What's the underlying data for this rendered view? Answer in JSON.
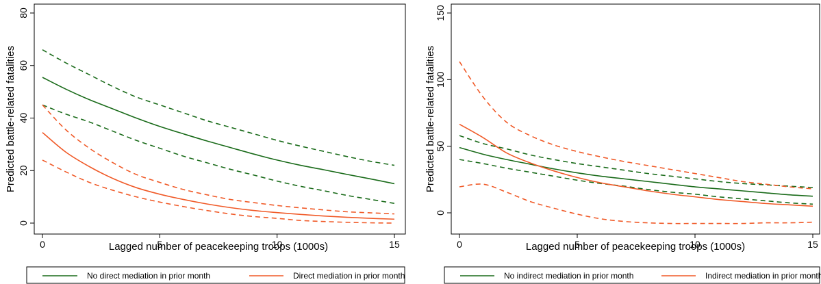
{
  "colors": {
    "no_mediation": "#1a6b1a",
    "mediation": "#f05a28"
  },
  "legend": {
    "left": {
      "no_mediation": "No direct mediation in prior month",
      "mediation": "Direct mediation in prior month"
    },
    "right": {
      "no_mediation": "No indirect mediation in prior month",
      "mediation": "Indirect mediation in prior month"
    }
  },
  "chart_data": [
    {
      "type": "line",
      "xlabel": "Lagged number of peacekeeping troops (1000s)",
      "ylabel": "Predicted battle-related fatalities",
      "xlim": [
        0,
        15
      ],
      "ylim": [
        0,
        80
      ],
      "xticks": [
        0,
        5,
        10,
        15
      ],
      "yticks": [
        0,
        20,
        40,
        60,
        80
      ],
      "x": [
        0,
        1,
        2,
        3,
        4,
        5,
        6,
        7,
        8,
        9,
        10,
        11,
        12,
        13,
        14,
        15
      ],
      "series": [
        {
          "name": "No direct mediation in prior month",
          "group": "no_mediation",
          "style": "solid",
          "values": [
            55.5,
            51,
            47,
            43.5,
            40,
            36.8,
            34,
            31.3,
            28.8,
            26.3,
            24,
            22,
            20.3,
            18.5,
            16.8,
            15
          ]
        },
        {
          "group": "no_mediation",
          "style": "dashed",
          "values": [
            66,
            61,
            56.5,
            52,
            48,
            45,
            42,
            39,
            36.5,
            34,
            31.5,
            29.3,
            27.3,
            25.3,
            23.5,
            22
          ]
        },
        {
          "group": "no_mediation",
          "style": "dashed",
          "values": [
            45,
            41.5,
            38.5,
            35,
            31.5,
            28.5,
            25.5,
            23,
            20.5,
            18.3,
            16,
            14,
            12.3,
            10.5,
            9,
            7.5
          ]
        },
        {
          "name": "Direct mediation in prior month",
          "group": "mediation",
          "style": "solid",
          "values": [
            34.5,
            27,
            21.5,
            17,
            13.5,
            11,
            9,
            7.3,
            5.9,
            4.8,
            4,
            3.3,
            2.7,
            2.2,
            1.8,
            1.5
          ]
        },
        {
          "group": "mediation",
          "style": "dashed",
          "values": [
            45,
            35.5,
            28.5,
            23,
            18.5,
            15.5,
            12.8,
            10.8,
            9,
            7.8,
            6.7,
            5.8,
            5,
            4.3,
            3.9,
            3.5
          ]
        },
        {
          "group": "mediation",
          "style": "dashed",
          "values": [
            24,
            19.5,
            15.5,
            12.5,
            10,
            8,
            6.3,
            4.8,
            3.5,
            2.5,
            1.8,
            1,
            0.6,
            0.3,
            0.1,
            0
          ]
        }
      ]
    },
    {
      "type": "line",
      "xlabel": "Lagged number of peacekeeping troops (1000s)",
      "ylabel": "Predicted battle-related fatalities",
      "xlim": [
        0,
        15
      ],
      "ylim": [
        0,
        150
      ],
      "xticks": [
        0,
        5,
        10,
        15
      ],
      "yticks": [
        0,
        50,
        100,
        150
      ],
      "x": [
        0,
        1,
        2,
        3,
        4,
        5,
        6,
        7,
        8,
        9,
        10,
        11,
        12,
        13,
        14,
        15
      ],
      "series": [
        {
          "name": "No indirect mediation in prior month",
          "group": "no_mediation",
          "style": "solid",
          "values": [
            49,
            44,
            40,
            36.5,
            33,
            30,
            27.5,
            25.5,
            23.5,
            21.5,
            19.5,
            18,
            16.5,
            15,
            13.5,
            12.5
          ]
        },
        {
          "group": "no_mediation",
          "style": "dashed",
          "values": [
            58,
            52,
            48,
            43.5,
            40,
            37,
            34.5,
            32,
            29.5,
            27.5,
            25.5,
            23.5,
            22,
            21,
            20,
            19
          ]
        },
        {
          "group": "no_mediation",
          "style": "dashed",
          "values": [
            40,
            37,
            33.5,
            30.5,
            27.5,
            24.5,
            22,
            20,
            17.5,
            15.5,
            14,
            12,
            10.5,
            9,
            7.5,
            6.5
          ]
        },
        {
          "name": "Indirect mediation in prior month",
          "group": "mediation",
          "style": "solid",
          "values": [
            66.5,
            56.5,
            45,
            37.5,
            31.5,
            26.5,
            22.5,
            19.5,
            16.5,
            14,
            12,
            10,
            8.5,
            7,
            6,
            5
          ]
        },
        {
          "group": "mediation",
          "style": "dashed",
          "values": [
            113.5,
            87,
            68,
            58,
            51,
            46,
            42,
            38.5,
            35.5,
            32.5,
            29.5,
            26.5,
            23.5,
            21.5,
            19.5,
            18
          ]
        },
        {
          "group": "mediation",
          "style": "dashed",
          "values": [
            19.5,
            21.5,
            15.5,
            8.5,
            3.5,
            -1,
            -4.5,
            -6.5,
            -7.5,
            -8,
            -8,
            -8,
            -8,
            -7.5,
            -7.5,
            -7
          ]
        }
      ]
    }
  ]
}
